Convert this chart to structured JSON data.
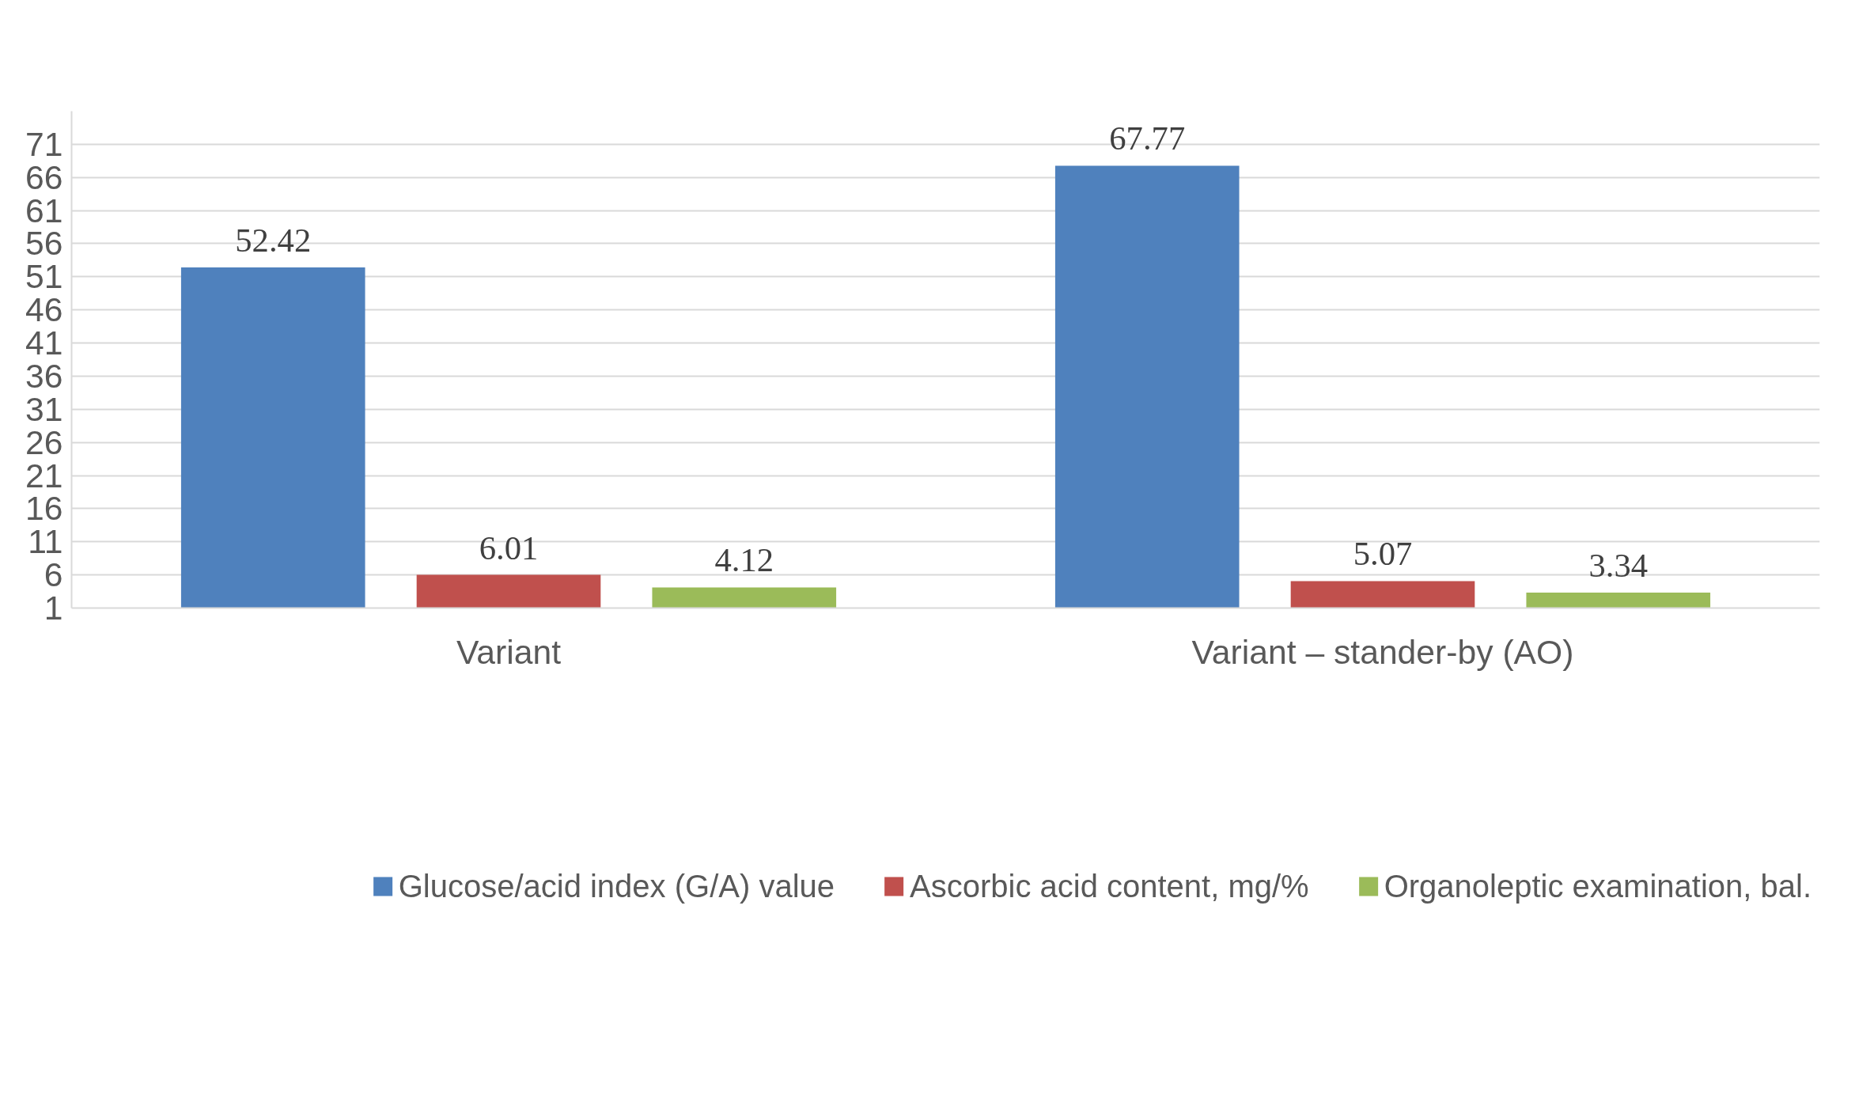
{
  "chart_data": {
    "type": "bar",
    "categories": [
      "Variant",
      "Variant – stander-by (AO)"
    ],
    "series": [
      {
        "name": "Glucose/acid index (G/A) value",
        "color": "#4f81bd",
        "values": [
          52.42,
          67.77
        ]
      },
      {
        "name": "Ascorbic acid content, mg/%",
        "color": "#c0504d",
        "values": [
          6.01,
          5.07
        ]
      },
      {
        "name": "Organoleptic examination, bal.",
        "color": "#9bbb59",
        "values": [
          4.12,
          3.34
        ]
      }
    ],
    "ylim": [
      1,
      76
    ],
    "yticks": [
      1,
      6,
      11,
      16,
      21,
      26,
      31,
      36,
      41,
      46,
      51,
      56,
      61,
      66,
      71
    ],
    "grid": "y",
    "legend": "bottom",
    "data_labels": true
  }
}
